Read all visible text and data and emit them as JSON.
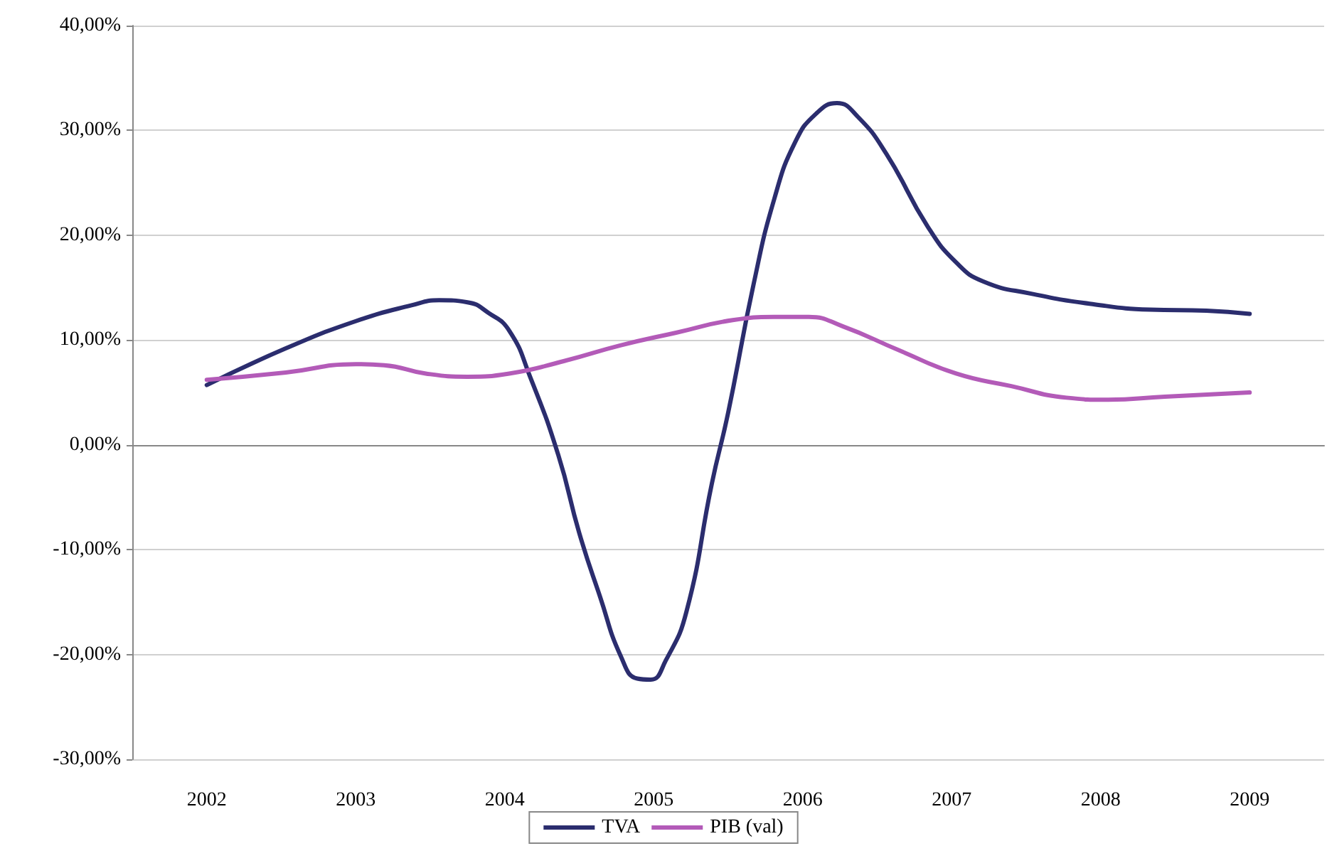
{
  "chart_data": {
    "type": "line",
    "xlim": [
      2001.5,
      2009.5
    ],
    "xticks": [
      2002,
      2003,
      2004,
      2005,
      2006,
      2007,
      2008,
      2009
    ],
    "ylim": [
      -30,
      40
    ],
    "yticks": [
      {
        "value": -30,
        "label": "-30,00%"
      },
      {
        "value": -20,
        "label": "-20,00%"
      },
      {
        "value": -10,
        "label": "-10,00%"
      },
      {
        "value": 0,
        "label": "0,00%"
      },
      {
        "value": 10,
        "label": "10,00%"
      },
      {
        "value": 20,
        "label": "20,00%"
      },
      {
        "value": 30,
        "label": "30,00%"
      },
      {
        "value": 40,
        "label": "40,00%"
      }
    ],
    "grid": "y",
    "legend": "bottom",
    "marker": "none",
    "line_style": "solid",
    "series": [
      {
        "name": "TVA",
        "color": "#2b2d6e",
        "x": [
          2002.0,
          2002.53,
          2003.0,
          2003.37,
          2003.56,
          2003.75,
          2003.89,
          2004.03,
          2004.17,
          2004.36,
          2004.5,
          2004.64,
          2004.78,
          2004.89,
          2004.98,
          2005.08,
          2005.22,
          2005.39,
          2005.5,
          2005.67,
          2005.81,
          2005.95,
          2006.09,
          2006.23,
          2006.37,
          2006.56,
          2006.84,
          2007.03,
          2007.21,
          2007.54,
          2007.96,
          2008.33,
          2008.71,
          2009.0
        ],
        "values": [
          5.7,
          9.2,
          11.8,
          13.3,
          13.8,
          13.6,
          12.6,
          10.9,
          6.5,
          -1,
          -8.4,
          -14.5,
          -20.2,
          -22.3,
          -22.4,
          -20.6,
          -15.9,
          -3.7,
          3.1,
          15.3,
          23.5,
          28.9,
          31.6,
          32.6,
          31.3,
          27.8,
          20.8,
          17.4,
          15.6,
          14.4,
          13.4,
          12.9,
          12.8,
          12.5
        ]
      },
      {
        "name": "PIB (val)",
        "color": "#b35bb8",
        "x": [
          2002.0,
          2002.53,
          2003.0,
          2003.19,
          2003.47,
          2003.75,
          2004.03,
          2004.4,
          2004.78,
          2005.15,
          2005.53,
          2005.81,
          2006.04,
          2006.27,
          2006.65,
          2007.03,
          2007.4,
          2007.77,
          2008.05,
          2008.43,
          2009.0
        ],
        "values": [
          6.2,
          6.9,
          7.7,
          7.6,
          6.8,
          6.5,
          6.8,
          8.0,
          9.5,
          10.7,
          11.9,
          12.2,
          12.2,
          11.3,
          9.0,
          6.8,
          5.6,
          4.5,
          4.3,
          4.6,
          5.0
        ]
      }
    ]
  }
}
